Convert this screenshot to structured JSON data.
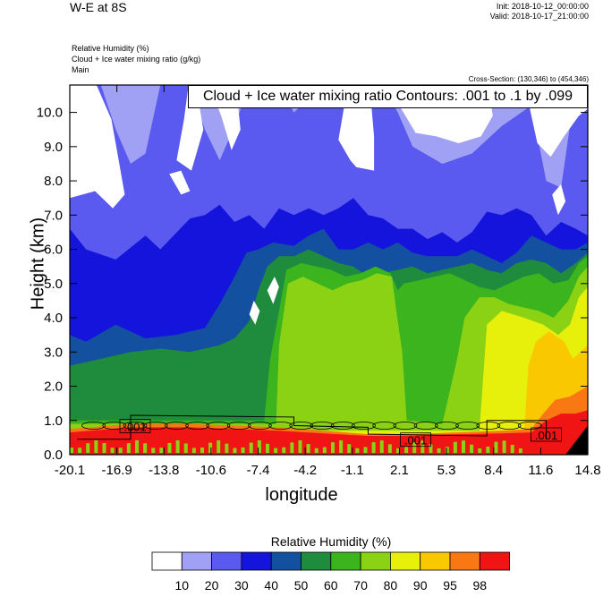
{
  "header": {
    "title": "W-E at 8S",
    "init": "Init: 2018-10-12_00:00:00",
    "valid": "Valid: 2018-10-17_21:00:00",
    "fields": [
      "Relative Humidity   (%)",
      "Cloud + Ice water mixing ratio   (g/kg)",
      "Main"
    ],
    "cross_section": "Cross-Section: (130,346) to (454,346)",
    "contour_info": "Cloud + Ice water mixing ratio Contours: .001 to .1 by .099"
  },
  "chart_data": {
    "type": "heatmap",
    "xlabel": "longitude",
    "ylabel": "Height (km)",
    "xlim": [
      -20.1,
      14.8
    ],
    "ylim": [
      0.0,
      10.8
    ],
    "x_ticks": [
      "-20.1",
      "-16.9",
      "-13.8",
      "-10.6",
      "-7.4",
      "-4.2",
      "-1.1",
      "2.1",
      "5.3",
      "8.4",
      "11.6",
      "14.8"
    ],
    "y_ticks": [
      "0.0",
      "1.0",
      "2.0",
      "3.0",
      "4.0",
      "5.0",
      "6.0",
      "7.0",
      "8.0",
      "9.0",
      "10.0"
    ],
    "colorbar": {
      "title": "Relative Humidity  (%)",
      "levels": [
        "10",
        "20",
        "30",
        "40",
        "50",
        "60",
        "70",
        "80",
        "90",
        "95",
        "98"
      ],
      "colors": [
        "#ffffff",
        "#a0a0f5",
        "#5a5af0",
        "#1414dc",
        "#1450a0",
        "#1e8c3c",
        "#3cb41e",
        "#8cd214",
        "#e6f00a",
        "#fac800",
        "#fa7814",
        "#f01414"
      ]
    },
    "contour_labels": [
      ".001",
      ".001",
      ".001"
    ],
    "layers": [
      {
        "level": 20,
        "top": [
          [
            -20.1,
            10.8
          ],
          [
            -18,
            10.8
          ],
          [
            -17,
            9.5
          ],
          [
            -16,
            8.5
          ],
          [
            -15,
            8.8
          ],
          [
            -14,
            10.8
          ],
          [
            -12,
            10.8
          ],
          [
            -11,
            9.5
          ],
          [
            -10,
            8.6
          ],
          [
            -9,
            9.6
          ],
          [
            -8,
            10.8
          ],
          [
            -6,
            10.8
          ],
          [
            -5,
            10.0
          ],
          [
            -4,
            10.4
          ],
          [
            -3,
            10.8
          ],
          [
            1,
            10.8
          ],
          [
            2,
            10.0
          ],
          [
            3,
            9.0
          ],
          [
            5,
            8.5
          ],
          [
            7,
            8.8
          ],
          [
            9,
            9.6
          ],
          [
            11,
            10.2
          ],
          [
            12,
            8.0
          ],
          [
            13,
            7.8
          ],
          [
            14,
            10.8
          ],
          [
            14.8,
            10.8
          ]
        ]
      },
      {
        "level": 30,
        "top": [
          [
            -20.1,
            6.6
          ],
          [
            -19,
            6.0
          ],
          [
            -17,
            5.7
          ],
          [
            -15,
            6.4
          ],
          [
            -14,
            6.0
          ],
          [
            -12,
            6.9
          ],
          [
            -11,
            7.0
          ],
          [
            -10,
            7.3
          ],
          [
            -9,
            6.8
          ],
          [
            -8,
            7.0
          ],
          [
            -7,
            6.6
          ],
          [
            -6,
            7.2
          ],
          [
            -5,
            7.0
          ],
          [
            -4,
            7.2
          ],
          [
            -3,
            7.0
          ],
          [
            -2,
            7.2
          ],
          [
            -1,
            7.5
          ],
          [
            0,
            7.0
          ],
          [
            1,
            6.9
          ],
          [
            2,
            6.6
          ],
          [
            3,
            6.6
          ],
          [
            4,
            6.3
          ],
          [
            5,
            6.5
          ],
          [
            6,
            6.2
          ],
          [
            7,
            6.5
          ],
          [
            8,
            7.1
          ],
          [
            9,
            7.0
          ],
          [
            10,
            7.2
          ],
          [
            11,
            7.0
          ],
          [
            12,
            6.4
          ],
          [
            13,
            6.8
          ],
          [
            14,
            6.6
          ],
          [
            14.8,
            6.4
          ]
        ]
      },
      {
        "level": 40,
        "top": [
          [
            -20.1,
            3.5
          ],
          [
            -19,
            3.3
          ],
          [
            -17,
            3.8
          ],
          [
            -15,
            3.4
          ],
          [
            -13,
            3.5
          ],
          [
            -11,
            3.7
          ],
          [
            -10,
            4.4
          ],
          [
            -9,
            5.2
          ],
          [
            -8.2,
            5.9
          ],
          [
            -7.4,
            6.0
          ],
          [
            -6.4,
            6.2
          ],
          [
            -5,
            6.1
          ],
          [
            -4,
            6.4
          ],
          [
            -3,
            6.6
          ],
          [
            -2,
            6.0
          ],
          [
            -1,
            6.0
          ],
          [
            0,
            6.2
          ],
          [
            1,
            6.0
          ],
          [
            2,
            6.2
          ],
          [
            3,
            5.9
          ],
          [
            4,
            5.8
          ],
          [
            5,
            5.8
          ],
          [
            6,
            5.8
          ],
          [
            7,
            6.0
          ],
          [
            8,
            5.8
          ],
          [
            9,
            5.6
          ],
          [
            10,
            5.9
          ],
          [
            11,
            6.4
          ],
          [
            12,
            6.2
          ],
          [
            13,
            6.0
          ],
          [
            14,
            6.0
          ],
          [
            14.8,
            6.2
          ]
        ]
      },
      {
        "level": 50,
        "top": [
          [
            -20.1,
            2.6
          ],
          [
            -18,
            2.8
          ],
          [
            -16,
            3.0
          ],
          [
            -14,
            3.1
          ],
          [
            -12,
            3.0
          ],
          [
            -10,
            3.2
          ],
          [
            -9,
            3.4
          ],
          [
            -8,
            3.9
          ],
          [
            -7.4,
            4.8
          ],
          [
            -6.8,
            5.5
          ],
          [
            -6,
            5.8
          ],
          [
            -5,
            5.8
          ],
          [
            -4,
            6.0
          ],
          [
            -3,
            5.8
          ],
          [
            -2,
            5.6
          ],
          [
            -1,
            5.5
          ],
          [
            0,
            5.2
          ],
          [
            1,
            5.3
          ],
          [
            2,
            5.4
          ],
          [
            3,
            5.5
          ],
          [
            4,
            5.3
          ],
          [
            5,
            5.4
          ],
          [
            6,
            5.5
          ],
          [
            7,
            5.6
          ],
          [
            8,
            5.4
          ],
          [
            9,
            5.3
          ],
          [
            10,
            5.6
          ],
          [
            11,
            5.7
          ],
          [
            12,
            5.6
          ],
          [
            13,
            5.3
          ],
          [
            14,
            5.6
          ],
          [
            14.8,
            5.9
          ]
        ]
      },
      {
        "level": 60,
        "top": [
          [
            -20.1,
            1.0
          ],
          [
            -7.0,
            1.0
          ],
          [
            -6.6,
            2.8
          ],
          [
            -6.0,
            4.2
          ],
          [
            -5.5,
            5.4
          ],
          [
            -4.5,
            5.6
          ],
          [
            -3.5,
            5.5
          ],
          [
            -2.5,
            5.4
          ],
          [
            -1.5,
            5.2
          ],
          [
            -0.5,
            5.3
          ],
          [
            0.5,
            5.5
          ],
          [
            1.5,
            5.3
          ],
          [
            2.0,
            4.8
          ],
          [
            2.4,
            5.0
          ],
          [
            3.5,
            5.1
          ],
          [
            4.5,
            5.2
          ],
          [
            5.5,
            5.3
          ],
          [
            6.5,
            5.1
          ],
          [
            7.5,
            4.9
          ],
          [
            8.5,
            4.8
          ],
          [
            9.5,
            5.0
          ],
          [
            10.5,
            5.2
          ],
          [
            11.5,
            5.3
          ],
          [
            12.5,
            5.0
          ],
          [
            13.5,
            5.1
          ],
          [
            14.2,
            5.6
          ],
          [
            14.8,
            5.8
          ]
        ]
      },
      {
        "level": 70,
        "top": [
          [
            -20.1,
            0.9
          ],
          [
            -6.2,
            0.9
          ],
          [
            -6.0,
            3.2
          ],
          [
            -5.4,
            5.0
          ],
          [
            -4.4,
            5.2
          ],
          [
            -3.4,
            5.0
          ],
          [
            -2.4,
            4.8
          ],
          [
            -1.4,
            5.0
          ],
          [
            -0.4,
            5.1
          ],
          [
            0.6,
            5.3
          ],
          [
            1.6,
            5.2
          ],
          [
            1.9,
            4.2
          ],
          [
            2.3,
            3.0
          ],
          [
            2.6,
            1.0
          ],
          [
            5.0,
            0.9
          ],
          [
            6.0,
            2.8
          ],
          [
            6.5,
            4.0
          ],
          [
            7.5,
            4.6
          ],
          [
            8.5,
            4.6
          ],
          [
            9.5,
            4.4
          ],
          [
            10.5,
            4.3
          ],
          [
            11.5,
            4.2
          ],
          [
            12.5,
            4.0
          ],
          [
            13.5,
            4.5
          ],
          [
            14.2,
            5.2
          ],
          [
            14.8,
            5.5
          ]
        ]
      },
      {
        "level": 80,
        "top": [
          [
            -20.1,
            0.7
          ],
          [
            7.5,
            0.7
          ],
          [
            8.0,
            3.8
          ],
          [
            9.0,
            4.2
          ],
          [
            10.5,
            4.0
          ],
          [
            11.8,
            3.8
          ],
          [
            12.8,
            3.5
          ],
          [
            13.6,
            3.8
          ],
          [
            14.2,
            4.6
          ],
          [
            14.8,
            4.9
          ]
        ]
      },
      {
        "level": 90,
        "top": [
          [
            -20.1,
            0.6
          ],
          [
            10.5,
            0.6
          ],
          [
            10.8,
            2.6
          ],
          [
            11.3,
            3.3
          ],
          [
            12.2,
            3.6
          ],
          [
            13.2,
            3.3
          ],
          [
            13.8,
            2.8
          ],
          [
            14.3,
            3.0
          ],
          [
            14.8,
            3.2
          ]
        ]
      },
      {
        "level": 95,
        "top": [
          [
            -20.1,
            0.75
          ],
          [
            -16,
            0.9
          ],
          [
            -12,
            0.9
          ],
          [
            -9,
            0.85
          ],
          [
            -6,
            0.8
          ],
          [
            -3,
            0.7
          ],
          [
            0,
            0.6
          ],
          [
            3,
            0.6
          ],
          [
            6,
            0.65
          ],
          [
            9,
            0.7
          ],
          [
            11,
            0.75
          ],
          [
            11.8,
            1.2
          ],
          [
            12.6,
            1.6
          ],
          [
            13.6,
            1.7
          ],
          [
            14.4,
            1.9
          ],
          [
            14.8,
            2.0
          ]
        ]
      },
      {
        "level": 98,
        "top": [
          [
            -20.1,
            0.65
          ],
          [
            -16,
            0.8
          ],
          [
            -12,
            0.8
          ],
          [
            -9,
            0.75
          ],
          [
            -6,
            0.7
          ],
          [
            -3,
            0.62
          ],
          [
            0,
            0.55
          ],
          [
            3,
            0.55
          ],
          [
            6,
            0.6
          ],
          [
            9,
            0.62
          ],
          [
            11,
            0.65
          ],
          [
            12,
            1.0
          ],
          [
            13,
            1.2
          ],
          [
            14,
            1.2
          ],
          [
            14.8,
            1.3
          ]
        ]
      }
    ],
    "white_patches": [
      [
        [
          -20.1,
          10.8
        ],
        [
          -18.3,
          10.8
        ],
        [
          -17.3,
          9.8
        ],
        [
          -16.8,
          8.6
        ],
        [
          -16.4,
          7.6
        ],
        [
          -17.2,
          7.2
        ],
        [
          -18.4,
          7.7
        ],
        [
          -20.1,
          7.5
        ]
      ],
      [
        [
          -12.1,
          10.8
        ],
        [
          -12.4,
          9.8
        ],
        [
          -12.9,
          8.6
        ],
        [
          -11.9,
          8.3
        ],
        [
          -11.1,
          9.5
        ],
        [
          -11.6,
          10.8
        ]
      ],
      [
        [
          -10.7,
          10.8
        ],
        [
          -9.9,
          9.9
        ],
        [
          -9.2,
          8.9
        ],
        [
          -8.6,
          9.5
        ],
        [
          -8.9,
          10.8
        ]
      ],
      [
        [
          -0.6,
          10.8
        ],
        [
          -1.6,
          10.2
        ],
        [
          -2.0,
          9.2
        ],
        [
          -1.2,
          8.6
        ],
        [
          -0.8,
          8.4
        ],
        [
          0.4,
          8.3
        ],
        [
          0.4,
          9.3
        ],
        [
          0.2,
          10.3
        ],
        [
          0.6,
          10.8
        ]
      ],
      [
        [
          2.9,
          10.8
        ],
        [
          2.1,
          10.2
        ],
        [
          3.2,
          9.4
        ],
        [
          4.6,
          9.3
        ],
        [
          6.1,
          9.1
        ],
        [
          7.6,
          9.3
        ],
        [
          8.4,
          9.9
        ],
        [
          8.1,
          10.8
        ]
      ],
      [
        [
          11.2,
          10.8
        ],
        [
          10.9,
          10.1
        ],
        [
          11.4,
          9.1
        ],
        [
          12.3,
          8.7
        ],
        [
          13.2,
          9.3
        ],
        [
          14.2,
          9.9
        ],
        [
          14.8,
          10.1
        ],
        [
          14.8,
          10.8
        ]
      ],
      [
        [
          -13.4,
          8.2
        ],
        [
          -12.6,
          7.6
        ],
        [
          -12.0,
          7.7
        ],
        [
          -12.6,
          8.3
        ]
      ],
      [
        [
          -6.8,
          4.8
        ],
        [
          -6.4,
          4.4
        ],
        [
          -6.0,
          4.9
        ],
        [
          -6.3,
          5.2
        ]
      ],
      [
        [
          12.4,
          7.6
        ],
        [
          12.8,
          7.0
        ],
        [
          13.3,
          7.4
        ],
        [
          13.0,
          7.9
        ]
      ],
      [
        [
          -8.0,
          4.1
        ],
        [
          -7.6,
          3.8
        ],
        [
          -7.3,
          4.2
        ],
        [
          -7.7,
          4.5
        ]
      ]
    ]
  }
}
